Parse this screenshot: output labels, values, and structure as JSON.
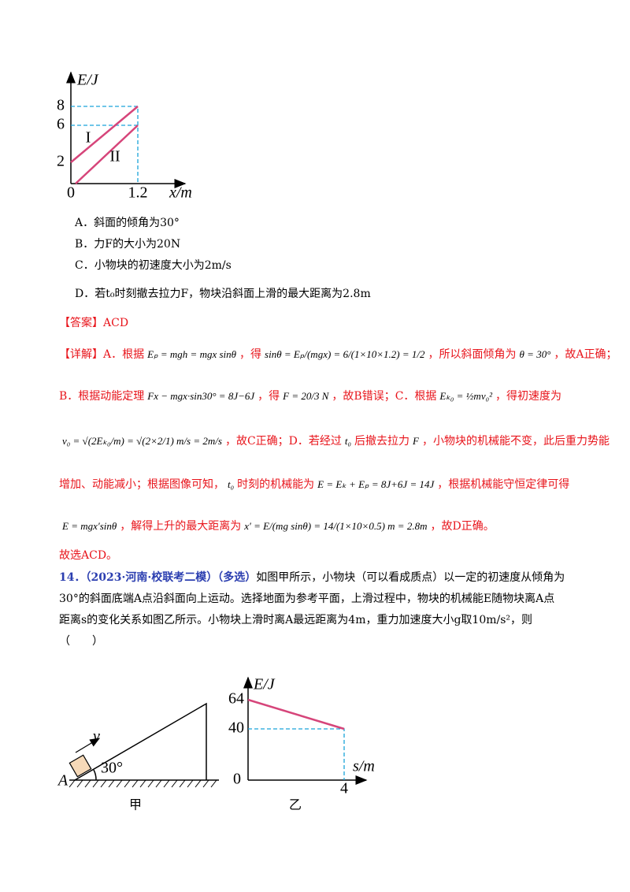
{
  "figure1": {
    "y_label": "E/J",
    "x_label": "x/m",
    "y_ticks": [
      "8",
      "6",
      "2"
    ],
    "origin": "0",
    "x_tick": "1.2",
    "line_labels": [
      "I",
      "II"
    ]
  },
  "options": [
    "A．斜面的倾角为30°",
    "B．力F的大小为20N",
    "C．小物块的初速度大小为2m/s",
    "D．若t₀时刻撤去拉力F，物块沿斜面上滑的最大距离为2.8m"
  ],
  "answer": {
    "tag": "【答案】",
    "text": "ACD"
  },
  "explanation": {
    "lines": [
      [
        {
          "text": "【详解】A．根据"
        },
        {
          "math": "Eₚ = mgh = mgx sinθ"
        },
        {
          "text": "，得"
        },
        {
          "math": "sinθ = Eₚ/(mgx) = 6/(1×10×1.2) = 1/2"
        },
        {
          "text": "，所以斜面倾角为"
        },
        {
          "math": "θ = 30°"
        },
        {
          "text": "，故A正确；"
        }
      ],
      [
        {
          "text": "B．根据动能定理"
        },
        {
          "math": "Fx − mgx·sin30° = 8J−6J"
        },
        {
          "text": "，得"
        },
        {
          "math": "F = 20/3 N"
        },
        {
          "text": "，故B错误；C．根据"
        },
        {
          "math": "Eₖ₀ = ½mv₀²"
        },
        {
          "text": "，得初速度为"
        }
      ],
      [
        {
          "math": "v₀ = √(2Eₖ₀/m) = √(2×2/1) m/s = 2m/s"
        },
        {
          "text": "，故C正确；D．若经过"
        },
        {
          "math": "t₀"
        },
        {
          "text": "后撤去拉力"
        },
        {
          "math": "F"
        },
        {
          "text": "，小物块的机械能不变，此后重力势能"
        }
      ],
      [
        {
          "text": "增加、动能减小；根据图像可知，"
        },
        {
          "math": "t₀"
        },
        {
          "text": "时刻的机械能为"
        },
        {
          "math": "E = Eₖ + Eₚ = 8J+6J = 14J"
        },
        {
          "text": "，根据机械能守恒定律可得"
        }
      ],
      [
        {
          "math": "E = mgx′sinθ"
        },
        {
          "text": "，解得上升的最大距离为"
        },
        {
          "math": "x′ = E/(mg sinθ) = 14/(1×10×0.5) m = 2.8m"
        },
        {
          "text": "，故D正确。"
        }
      ]
    ]
  },
  "conclusion": "故选ACD。",
  "question": {
    "source": "14．（2023·河南·校联考二模）（多选）",
    "lines": [
      "如图甲所示，小物块（可以看成质点）以一定的初速度从倾角为",
      "30°的斜面底端A点沿斜面向上运动。选择地面为参考平面，上滑过程中，物块的机械能E随物块离A点",
      "距离s的变化关系如图乙所示。小物块上滑时离A最远距离为4m，重力加速度大小g取10m/s²，则",
      "（　　）"
    ]
  },
  "figure_jia": {
    "velocity": "v",
    "angle": "30°",
    "point": "A",
    "caption": "甲"
  },
  "figure_yi": {
    "y_label": "E/J",
    "x_label": "s/m",
    "y_ticks": [
      "64",
      "40"
    ],
    "origin": "0",
    "x_tick": "4",
    "caption": "乙"
  }
}
